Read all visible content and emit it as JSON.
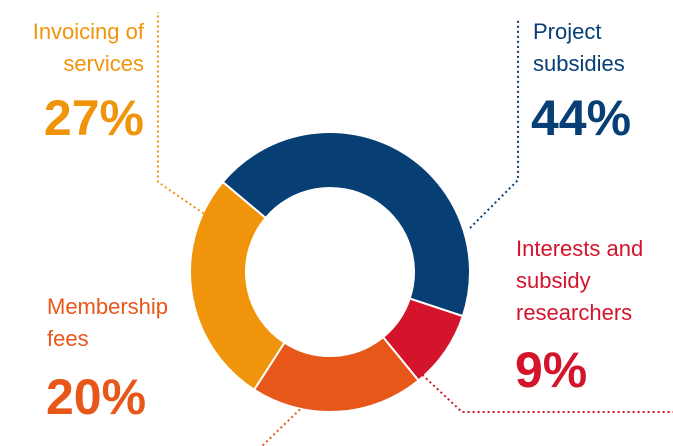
{
  "chart_data": {
    "type": "pie",
    "title": "",
    "categories": [
      "Project subsidies",
      "Interests and subsidy researchers",
      "Membership fees",
      "Invoicing of services"
    ],
    "values": [
      44,
      9,
      20,
      27
    ],
    "unit": "%",
    "colors": [
      "#073f75",
      "#d3142b",
      "#e8571a",
      "#f0940c"
    ],
    "labels": {
      "project": {
        "line1": "Project",
        "line2": "subsidies",
        "pct": "44%"
      },
      "interests": {
        "line1": "Interests and",
        "line2": "subsidy",
        "line3": "researchers",
        "pct": "9%"
      },
      "membership": {
        "line1": "Membership",
        "line2": "fees",
        "pct": "20%"
      },
      "invoicing": {
        "line1": "Invoicing of",
        "line2": "services",
        "pct": "27%"
      }
    },
    "label_colors": {
      "project": "#073f75",
      "interests": "#d3142b",
      "membership": "#e8571a",
      "invoicing": "#f0940c"
    }
  }
}
